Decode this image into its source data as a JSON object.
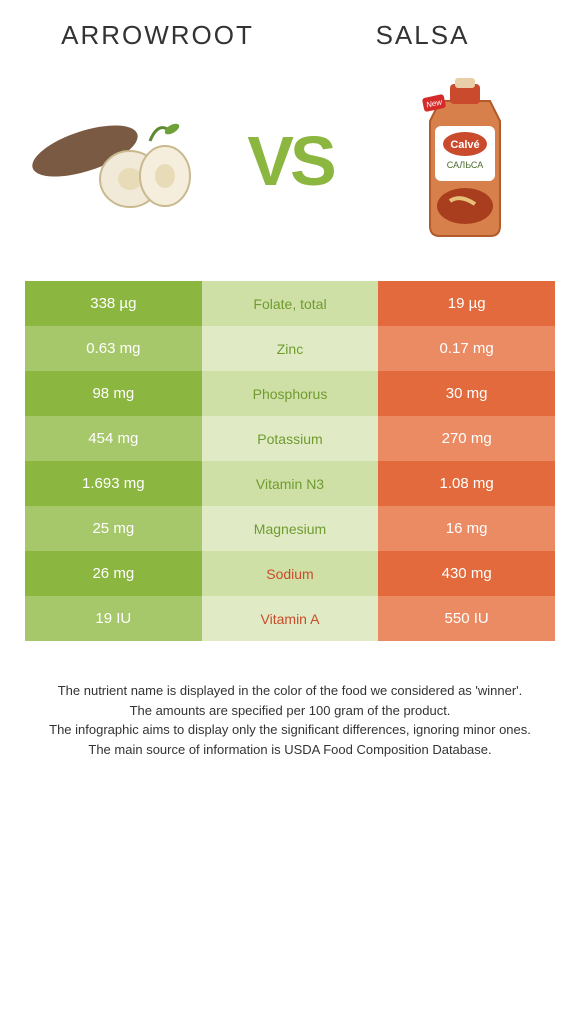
{
  "header": {
    "left": "Arrowroot",
    "right": "Salsa",
    "vs": "VS"
  },
  "colors": {
    "left_primary": "#8bb63f",
    "left_alt": "#a6c86a",
    "mid_primary": "#cfe0a6",
    "mid_alt": "#e0ebc5",
    "right_primary": "#e26a3c",
    "right_alt": "#ea8b63",
    "winner_left_text": "#6f9b2f",
    "winner_right_text": "#c84b2a",
    "vs_color": "#8bb63f"
  },
  "rows": [
    {
      "left": "338 µg",
      "name": "Folate, total",
      "right": "19 µg",
      "winner": "left"
    },
    {
      "left": "0.63 mg",
      "name": "Zinc",
      "right": "0.17 mg",
      "winner": "left"
    },
    {
      "left": "98 mg",
      "name": "Phosphorus",
      "right": "30 mg",
      "winner": "left"
    },
    {
      "left": "454 mg",
      "name": "Potassium",
      "right": "270 mg",
      "winner": "left"
    },
    {
      "left": "1.693 mg",
      "name": "Vitamin N3",
      "right": "1.08 mg",
      "winner": "left"
    },
    {
      "left": "25 mg",
      "name": "Magnesium",
      "right": "16 mg",
      "winner": "left"
    },
    {
      "left": "26 mg",
      "name": "Sodium",
      "right": "430 mg",
      "winner": "right"
    },
    {
      "left": "19 IU",
      "name": "Vitamin A",
      "right": "550 IU",
      "winner": "right"
    }
  ],
  "footnotes": [
    "The nutrient name is displayed in the color of the food we considered as 'winner'.",
    "The amounts are specified per 100 gram of the product.",
    "The infographic aims to display only the significant differences, ignoring minor ones.",
    "The main source of information is USDA Food Composition Database."
  ]
}
